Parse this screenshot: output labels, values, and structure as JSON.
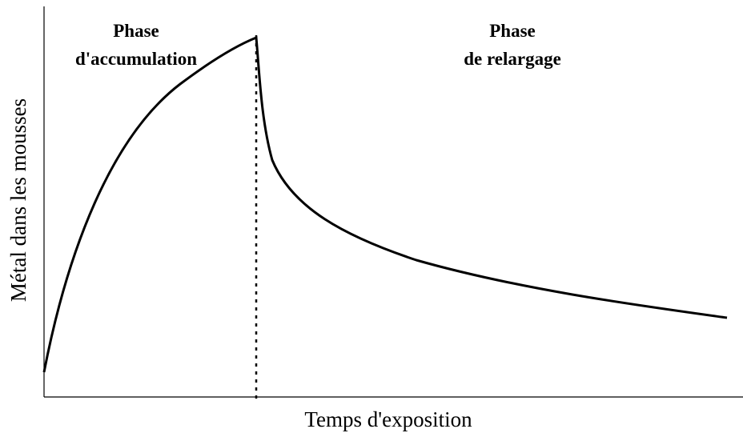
{
  "phases": {
    "accumulation": {
      "title": "Phase",
      "subtitle": "d'accumulation"
    },
    "release": {
      "title": "Phase",
      "subtitle": "de relargage"
    }
  },
  "axes": {
    "y_label": "Métal dans les mousses",
    "x_label": "Temps d'exposition"
  }
}
